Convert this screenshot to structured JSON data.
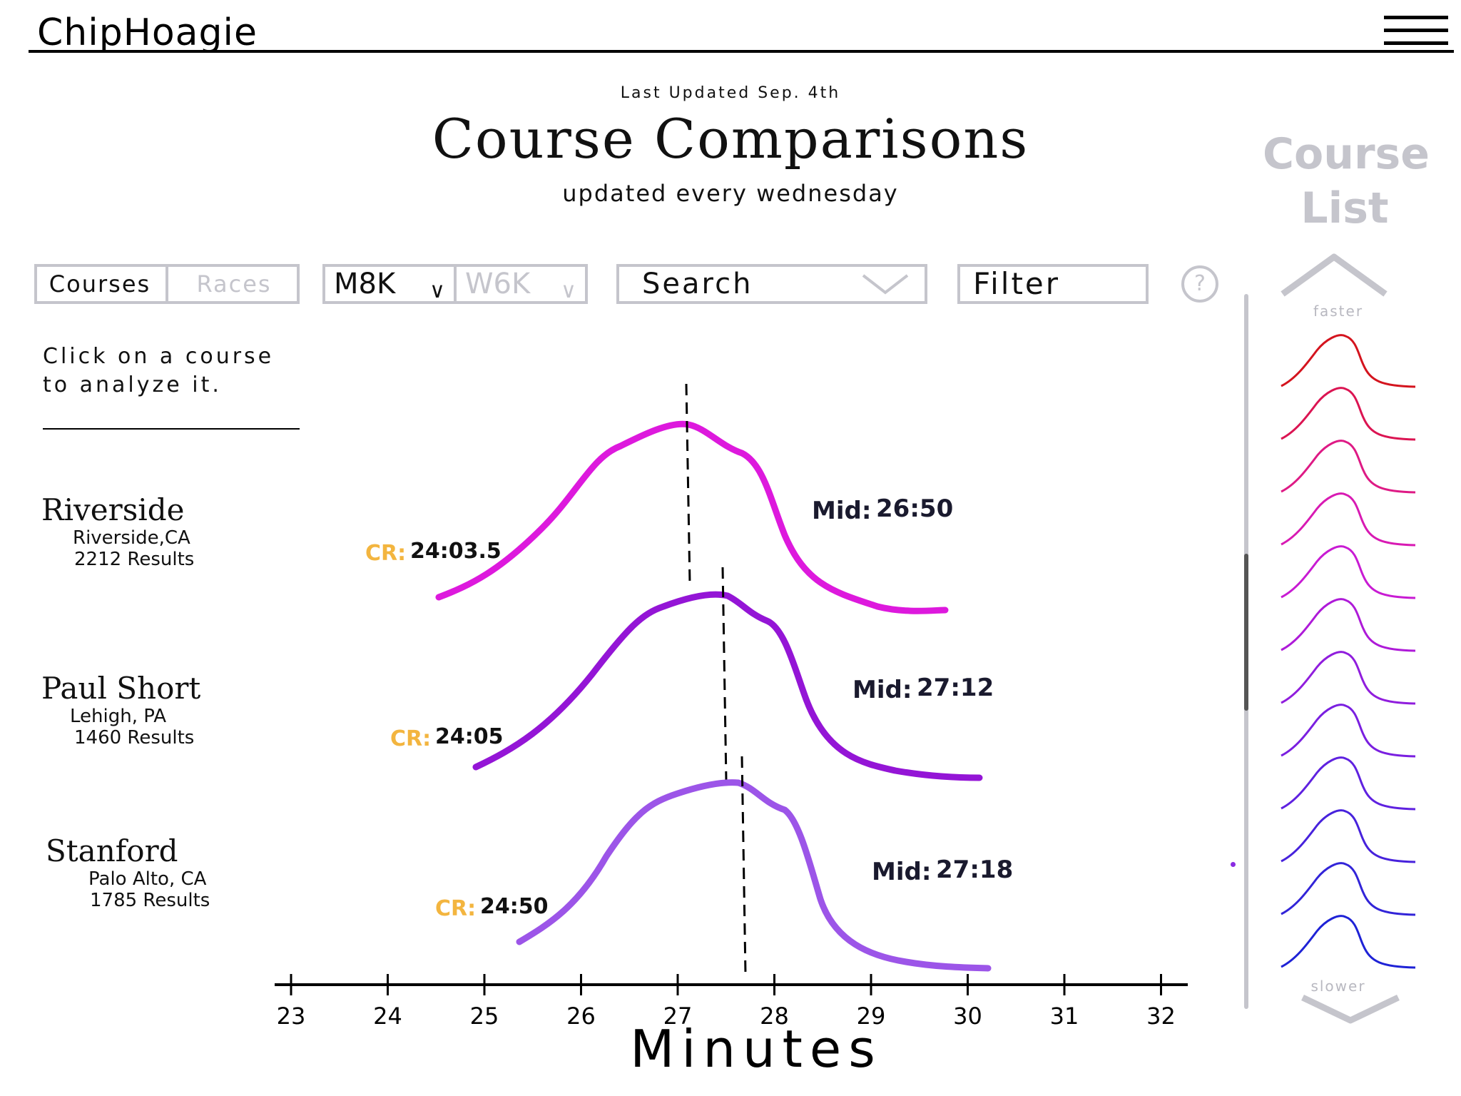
{
  "app": {
    "brand": "ChipHoagie"
  },
  "header": {
    "last_updated": "Last Updated Sep. 4th",
    "title": "Course Comparisons",
    "subtitle": "updated every wednesday"
  },
  "toolbar": {
    "tabs": [
      {
        "label": "Courses",
        "active": true
      },
      {
        "label": "Races",
        "active": false
      }
    ],
    "distances": [
      {
        "label": "M8K",
        "active": true
      },
      {
        "label": "W6K",
        "active": false
      }
    ],
    "search": {
      "value": "Search"
    },
    "filter": {
      "label": "Filter"
    },
    "help_icon": "question-circle-icon"
  },
  "hint": "Click on a course to analyze it.",
  "courses": [
    {
      "name": "Riverside",
      "location": "Riverside,CA",
      "results": "2212 Results",
      "cr_label": "CR:",
      "cr_time": "24:03.5",
      "mid_label": "Mid:",
      "mid_time": "26:50",
      "color": "#dd19dd"
    },
    {
      "name": "Paul Short",
      "location": "Lehigh, PA",
      "results": "1460 Results",
      "cr_label": "CR:",
      "cr_time": "24:05",
      "mid_label": "Mid:",
      "mid_time": "27:12",
      "color": "#9415d6"
    },
    {
      "name": "Stanford",
      "location": "Palo Alto, CA",
      "results": "1785 Results",
      "cr_label": "CR:",
      "cr_time": "24:50",
      "mid_label": "Mid:",
      "mid_time": "27:18",
      "color": "#9c55e8"
    }
  ],
  "axis": {
    "label": "Minutes",
    "ticks": [
      "23",
      "24",
      "25",
      "26",
      "27",
      "28",
      "29",
      "30",
      "31",
      "32"
    ]
  },
  "colors": {
    "cr": "#f3b53f",
    "mid": "#1a1a2e",
    "muted": "#c5c5cc"
  },
  "sidebar": {
    "title_line1": "Course",
    "title_line2": "List",
    "faster_label": "faster",
    "slower_label": "slower",
    "mini_colors": [
      "#d4141e",
      "#db1452",
      "#de1a85",
      "#d81ab3",
      "#c81bd3",
      "#ae1ad8",
      "#901ddd",
      "#7a1fe0",
      "#5f21e0",
      "#4722dc",
      "#3224d8",
      "#1e22d6"
    ]
  }
}
